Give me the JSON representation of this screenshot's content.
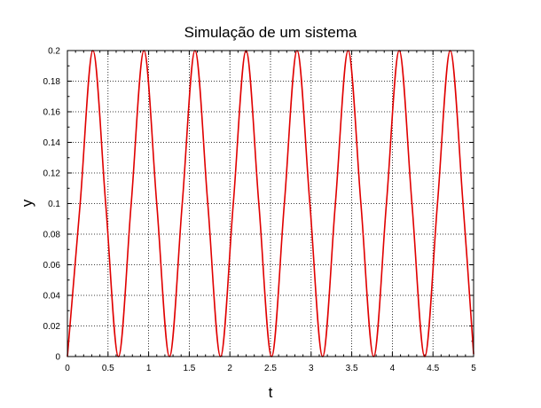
{
  "chart_data": {
    "type": "line",
    "title": "Simulação de um sistema",
    "xlabel": "t",
    "ylabel": "y",
    "xlim": [
      0,
      5
    ],
    "ylim": [
      0,
      0.2
    ],
    "grid": true,
    "x_ticks": [
      0,
      0.5,
      1,
      1.5,
      2,
      2.5,
      3,
      3.5,
      4,
      4.5,
      5
    ],
    "x_tick_labels": [
      "0",
      "0.5",
      "1",
      "1.5",
      "2",
      "2.5",
      "3",
      "3.5",
      "4",
      "4.5",
      "5"
    ],
    "y_ticks": [
      0,
      0.02,
      0.04,
      0.06,
      0.08,
      0.1,
      0.12,
      0.14,
      0.16,
      0.18,
      0.2
    ],
    "y_tick_labels": [
      "0",
      "0.02",
      "0.04",
      "0.06",
      "0.08",
      "0.1",
      "0.12",
      "0.14",
      "0.16",
      "0.18",
      "0.2"
    ],
    "series": [
      {
        "color": "#e00000",
        "x": [
          0,
          0.1571,
          0.3142,
          0.4712,
          0.6283,
          0.7854,
          0.9425,
          1.0996,
          1.2566,
          1.4137,
          1.5708,
          1.7279,
          1.885,
          2.042,
          2.1991,
          2.3562,
          2.5133,
          2.6704,
          2.8274,
          2.9845,
          3.1416,
          3.2987,
          3.4558,
          3.6128,
          3.7699,
          3.927,
          4.0841,
          4.2412,
          4.3982,
          4.5553,
          4.7124,
          4.8695,
          5.0
        ],
        "y": [
          0,
          0.1,
          0.2,
          0.1,
          0,
          0.1,
          0.2,
          0.1,
          0,
          0.1,
          0.2,
          0.1,
          0,
          0.1,
          0.2,
          0.1,
          0,
          0.1,
          0.2,
          0.1,
          0,
          0.1,
          0.2,
          0.1,
          0,
          0.1,
          0.2,
          0.1,
          0,
          0.1,
          0.2,
          0.1,
          0.0016
        ]
      }
    ]
  }
}
